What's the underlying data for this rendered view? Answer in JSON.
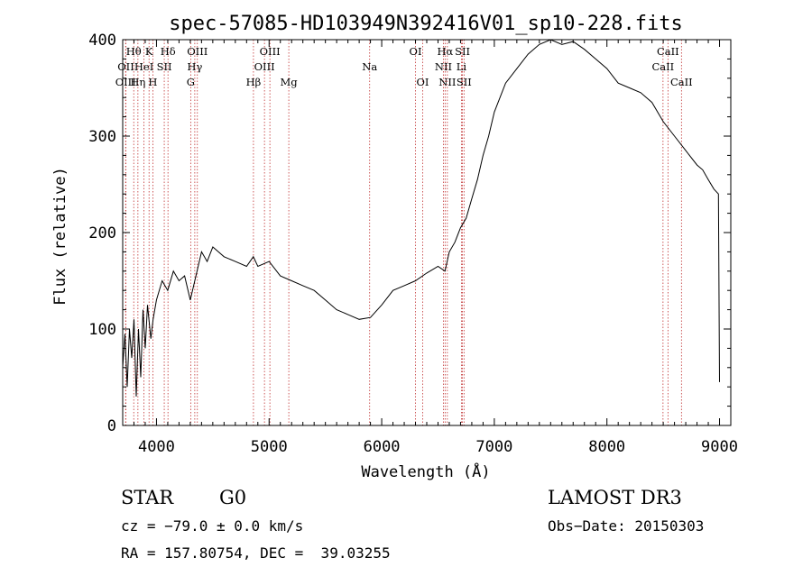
{
  "chart_data": {
    "type": "line",
    "title": "spec-57085-HD103949N392416V01_sp10-228.fits",
    "xlabel": "Wavelength (Å)",
    "ylabel": "Flux (relative)",
    "xlim": [
      3700,
      9100
    ],
    "ylim": [
      0,
      400
    ],
    "x_ticks": [
      4000,
      5000,
      6000,
      7000,
      8000,
      9000
    ],
    "y_ticks": [
      0,
      100,
      200,
      300,
      400
    ],
    "series": [
      {
        "name": "flux",
        "x": [
          3700,
          3720,
          3740,
          3760,
          3780,
          3800,
          3820,
          3840,
          3860,
          3880,
          3900,
          3920,
          3950,
          3970,
          4000,
          4050,
          4100,
          4150,
          4200,
          4250,
          4300,
          4340,
          4400,
          4450,
          4500,
          4550,
          4600,
          4700,
          4800,
          4860,
          4900,
          5000,
          5100,
          5200,
          5300,
          5400,
          5500,
          5600,
          5700,
          5800,
          5900,
          6000,
          6100,
          6200,
          6300,
          6400,
          6500,
          6562,
          6600,
          6650,
          6700,
          6750,
          6800,
          6850,
          6900,
          6950,
          7000,
          7100,
          7200,
          7300,
          7400,
          7500,
          7600,
          7700,
          7800,
          7900,
          8000,
          8100,
          8200,
          8300,
          8400,
          8500,
          8600,
          8700,
          8800,
          8850,
          8900,
          8950,
          8990,
          9000
        ],
        "y": [
          60,
          95,
          40,
          100,
          70,
          110,
          30,
          100,
          50,
          120,
          80,
          125,
          90,
          110,
          130,
          150,
          140,
          160,
          150,
          155,
          130,
          150,
          180,
          170,
          185,
          180,
          175,
          170,
          165,
          175,
          165,
          170,
          155,
          150,
          145,
          140,
          130,
          120,
          115,
          110,
          112,
          125,
          140,
          145,
          150,
          158,
          165,
          160,
          180,
          190,
          205,
          215,
          235,
          255,
          280,
          300,
          325,
          355,
          370,
          385,
          395,
          400,
          395,
          398,
          390,
          380,
          370,
          355,
          350,
          345,
          335,
          315,
          300,
          285,
          270,
          265,
          255,
          245,
          240,
          45
        ]
      }
    ],
    "spectral_lines": [
      {
        "label": "Hθ",
        "x": 3798,
        "row": 0
      },
      {
        "label": "OII",
        "x": 3728,
        "row": 1
      },
      {
        "label": "OIII",
        "x": 3726,
        "row": 2
      },
      {
        "label": "K",
        "x": 3934,
        "row": 0
      },
      {
        "label": "HeI",
        "x": 3889,
        "row": 1
      },
      {
        "label": "Hη",
        "x": 3835,
        "row": 2
      },
      {
        "label": "SII",
        "x": 4069,
        "row": 1
      },
      {
        "label": "H",
        "x": 3968,
        "row": 2
      },
      {
        "label": "Hδ",
        "x": 4102,
        "row": 0
      },
      {
        "label": "OIII",
        "x": 4363,
        "row": 0
      },
      {
        "label": "Hγ",
        "x": 4340,
        "row": 1
      },
      {
        "label": "G",
        "x": 4304,
        "row": 2
      },
      {
        "label": "Hβ",
        "x": 4861,
        "row": 2
      },
      {
        "label": "OIII",
        "x": 5007,
        "row": 0
      },
      {
        "label": "OIII",
        "x": 4959,
        "row": 1
      },
      {
        "label": "Mg",
        "x": 5175,
        "row": 2
      },
      {
        "label": "Na",
        "x": 5893,
        "row": 1
      },
      {
        "label": "OI",
        "x": 6300,
        "row": 0
      },
      {
        "label": "OI",
        "x": 6364,
        "row": 2
      },
      {
        "label": "Hα",
        "x": 6563,
        "row": 0
      },
      {
        "label": "NII",
        "x": 6548,
        "row": 1
      },
      {
        "label": "NII",
        "x": 6583,
        "row": 2
      },
      {
        "label": "SII",
        "x": 6717,
        "row": 0
      },
      {
        "label": "Li",
        "x": 6708,
        "row": 1
      },
      {
        "label": "SII",
        "x": 6731,
        "row": 2
      },
      {
        "label": "CaII",
        "x": 8542,
        "row": 0
      },
      {
        "label": "CaII",
        "x": 8498,
        "row": 1
      },
      {
        "label": "CaII",
        "x": 8662,
        "row": 2
      }
    ]
  },
  "info": {
    "object_class": "STAR",
    "subclass": "G0",
    "survey": "LAMOST DR3",
    "cz": "cz = −79.0 ± 0.0 km/s",
    "obs_date": "Obs−Date: 20150303",
    "coords": "RA = 157.80754, DEC =  39.03255"
  }
}
